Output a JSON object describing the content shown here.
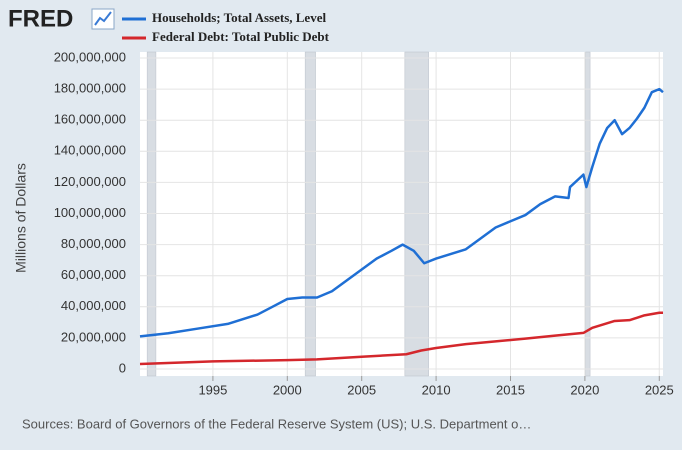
{
  "chart_data": {
    "type": "line",
    "logo": "FRED",
    "y_label": "Millions of Dollars",
    "source": "Sources: Board of Governors of the Federal Reserve System (US); U.S. Department o…",
    "xlim": [
      1990.1,
      2025.25
    ],
    "xticks": [
      1995,
      2000,
      2005,
      2010,
      2015,
      2020,
      2025
    ],
    "ylim": [
      0,
      200000000
    ],
    "yticks": [
      0,
      {
        "value": 20000000,
        "label": "20,000,000"
      },
      {
        "value": 40000000,
        "label": "40,000,000"
      },
      {
        "value": 60000000,
        "label": "60,000,000"
      },
      {
        "value": 80000000,
        "label": "80,000,000"
      },
      {
        "value": 100000000,
        "label": "100,000,000"
      },
      {
        "value": 120000000,
        "label": "120,000,000"
      },
      {
        "value": 140000000,
        "label": "140,000,000"
      },
      {
        "value": 160000000,
        "label": "160,000,000"
      },
      {
        "value": 180000000,
        "label": "180,000,000"
      },
      {
        "value": 200000000,
        "label": "200,000,000"
      }
    ],
    "grid": true,
    "recession_color": "#d8dde3",
    "recessions": [
      [
        1990.58,
        1991.17
      ],
      [
        2001.2,
        2001.9
      ],
      [
        2007.9,
        2009.5
      ],
      [
        2020.05,
        2020.35
      ]
    ],
    "series": [
      {
        "name": "Households; Total Assets, Level",
        "color": "#1f6fd4",
        "x": [
          1990.1,
          1992,
          1994,
          1996,
          1998,
          1999,
          2000,
          2001,
          2002,
          2003,
          2004,
          2005,
          2006,
          2007,
          2007.75,
          2008.5,
          2009.2,
          2010,
          2011,
          2012,
          2013,
          2014,
          2015,
          2016,
          2017,
          2018,
          2018.9,
          2019,
          2019.9,
          2020.1,
          2020.5,
          2021,
          2021.5,
          2022,
          2022.5,
          2023,
          2023.5,
          2024,
          2024.5,
          2025,
          2025.25
        ],
        "values": [
          21000000,
          23000000,
          26000000,
          29000000,
          35000000,
          40000000,
          45000000,
          46000000,
          46000000,
          50000000,
          57000000,
          64000000,
          71000000,
          76000000,
          80000000,
          76000000,
          68000000,
          71000000,
          74000000,
          77000000,
          84000000,
          91000000,
          95000000,
          99000000,
          106000000,
          111000000,
          110000000,
          117000000,
          125000000,
          117000000,
          130000000,
          145000000,
          155000000,
          160000000,
          151000000,
          155000000,
          161000000,
          168000000,
          178000000,
          180000000,
          178000000
        ]
      },
      {
        "name": "Federal Debt: Total Public Debt",
        "color": "#d4272c",
        "x": [
          1990.1,
          1995,
          2000,
          2002,
          2005,
          2008,
          2009,
          2010,
          2012,
          2014,
          2016,
          2018,
          2019.9,
          2020.5,
          2022,
          2023,
          2024,
          2025,
          2025.25
        ],
        "values": [
          3200000,
          4900000,
          5700000,
          6200000,
          7900000,
          9500000,
          11900000,
          13500000,
          16000000,
          17800000,
          19500000,
          21500000,
          23200000,
          26500000,
          30900000,
          31400000,
          34500000,
          36200000,
          36200000
        ]
      }
    ]
  }
}
